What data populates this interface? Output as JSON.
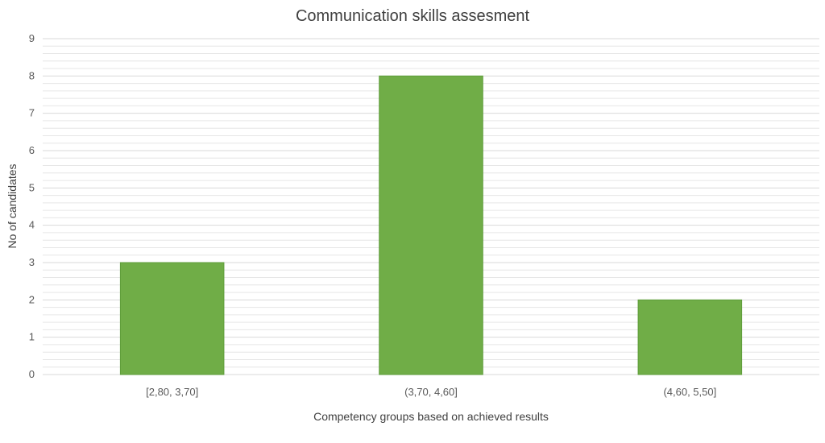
{
  "chart_data": {
    "type": "bar",
    "title": "Communication skills assesment",
    "xlabel": "Competency groups based on achieved results",
    "ylabel": "No of candidates",
    "categories": [
      "[2,80, 3,70]",
      "(3,70, 4,60]",
      "(4,60, 5,50]"
    ],
    "values": [
      3,
      8,
      2
    ],
    "ylim": [
      0,
      9
    ],
    "yticks": [
      "0",
      "1",
      "2",
      "3",
      "4",
      "5",
      "6",
      "7",
      "8",
      "9"
    ],
    "grid": true,
    "legend": "none",
    "bar_color": "#70AD47",
    "bar_edge_color": "#5E9C3A",
    "grid_color": "#D9D9D9",
    "minor_grid_color": "#E6E6E6"
  }
}
